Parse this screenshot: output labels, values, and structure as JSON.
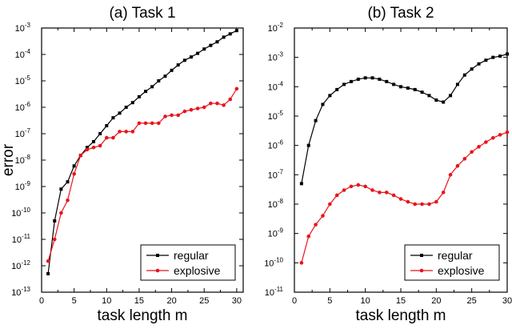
{
  "chart_data": [
    {
      "type": "line",
      "title": "(a) Task 1",
      "xlabel": "task length m",
      "ylabel": "error",
      "xlim": [
        0,
        31
      ],
      "ylim_exp": [
        -13,
        -3
      ],
      "yscale": "log",
      "xticks": [
        0,
        5,
        10,
        15,
        20,
        25,
        30
      ],
      "yticks_exp": [
        -13,
        -12,
        -11,
        -10,
        -9,
        -8,
        -7,
        -6,
        -5,
        -4,
        -3
      ],
      "legend_position": "bottom-right",
      "x": [
        1,
        2,
        3,
        4,
        5,
        6,
        7,
        8,
        9,
        10,
        11,
        12,
        13,
        14,
        15,
        16,
        17,
        18,
        19,
        20,
        21,
        22,
        23,
        24,
        25,
        26,
        27,
        28,
        29,
        30
      ],
      "series": [
        {
          "name": "regular",
          "color": "#000000",
          "marker": "square",
          "values": [
            5e-13,
            5e-11,
            8e-10,
            1.5e-09,
            6e-09,
            1.5e-08,
            3e-08,
            5e-08,
            1e-07,
            2e-07,
            4e-07,
            6e-07,
            1e-06,
            1.5e-06,
            2.5e-06,
            4e-06,
            6e-06,
            1e-05,
            1.5e-05,
            2.5e-05,
            4e-05,
            6e-05,
            8e-05,
            0.00011,
            0.00016,
            0.00022,
            0.0003,
            0.00045,
            0.0006,
            0.0008
          ]
        },
        {
          "name": "explosive",
          "color": "#e8141c",
          "marker": "circle",
          "values": [
            1.5e-12,
            1e-11,
            1e-10,
            3e-10,
            3e-09,
            1.5e-08,
            2.5e-08,
            3e-08,
            3.5e-08,
            7e-08,
            7e-08,
            1.2e-07,
            1.2e-07,
            1.2e-07,
            2.5e-07,
            2.5e-07,
            2.5e-07,
            2.5e-07,
            4.5e-07,
            5e-07,
            5e-07,
            7e-07,
            8e-07,
            9e-07,
            1e-06,
            1.4e-06,
            1.4e-06,
            1.2e-06,
            2e-06,
            5e-06
          ]
        }
      ]
    },
    {
      "type": "line",
      "title": "(b) Task 2",
      "xlabel": "task length m",
      "ylabel": "",
      "xlim": [
        0,
        30
      ],
      "ylim_exp": [
        -11,
        -2
      ],
      "yscale": "log",
      "xticks": [
        0,
        5,
        10,
        15,
        20,
        25,
        30
      ],
      "yticks_exp": [
        -11,
        -10,
        -9,
        -8,
        -7,
        -6,
        -5,
        -4,
        -3,
        -2
      ],
      "legend_position": "bottom-right",
      "x": [
        1,
        2,
        3,
        4,
        5,
        6,
        7,
        8,
        9,
        10,
        11,
        12,
        13,
        14,
        15,
        16,
        17,
        18,
        19,
        20,
        21,
        22,
        23,
        24,
        25,
        26,
        27,
        28,
        29,
        30
      ],
      "series": [
        {
          "name": "regular",
          "color": "#000000",
          "marker": "square",
          "values": [
            5e-08,
            1e-06,
            7e-06,
            2.5e-05,
            5e-05,
            8e-05,
            0.00012,
            0.00015,
            0.00018,
            0.0002,
            0.0002,
            0.00018,
            0.00015,
            0.00012,
            0.0001,
            9e-05,
            8e-05,
            6.5e-05,
            5e-05,
            3.5e-05,
            3e-05,
            5e-05,
            0.00012,
            0.00025,
            0.0004,
            0.0006,
            0.0008,
            0.001,
            0.0011,
            0.0013
          ]
        },
        {
          "name": "explosive",
          "color": "#e8141c",
          "marker": "circle",
          "values": [
            1e-10,
            8e-10,
            2e-09,
            4e-09,
            1e-08,
            2e-08,
            3e-08,
            4e-08,
            4.5e-08,
            4e-08,
            3e-08,
            2.5e-08,
            2.5e-08,
            2e-08,
            1.5e-08,
            1.2e-08,
            1e-08,
            1e-08,
            1e-08,
            1.2e-08,
            2.5e-08,
            1e-07,
            2e-07,
            3.5e-07,
            6e-07,
            9e-07,
            1.3e-06,
            1.8e-06,
            2.3e-06,
            2.8e-06
          ]
        }
      ]
    }
  ]
}
